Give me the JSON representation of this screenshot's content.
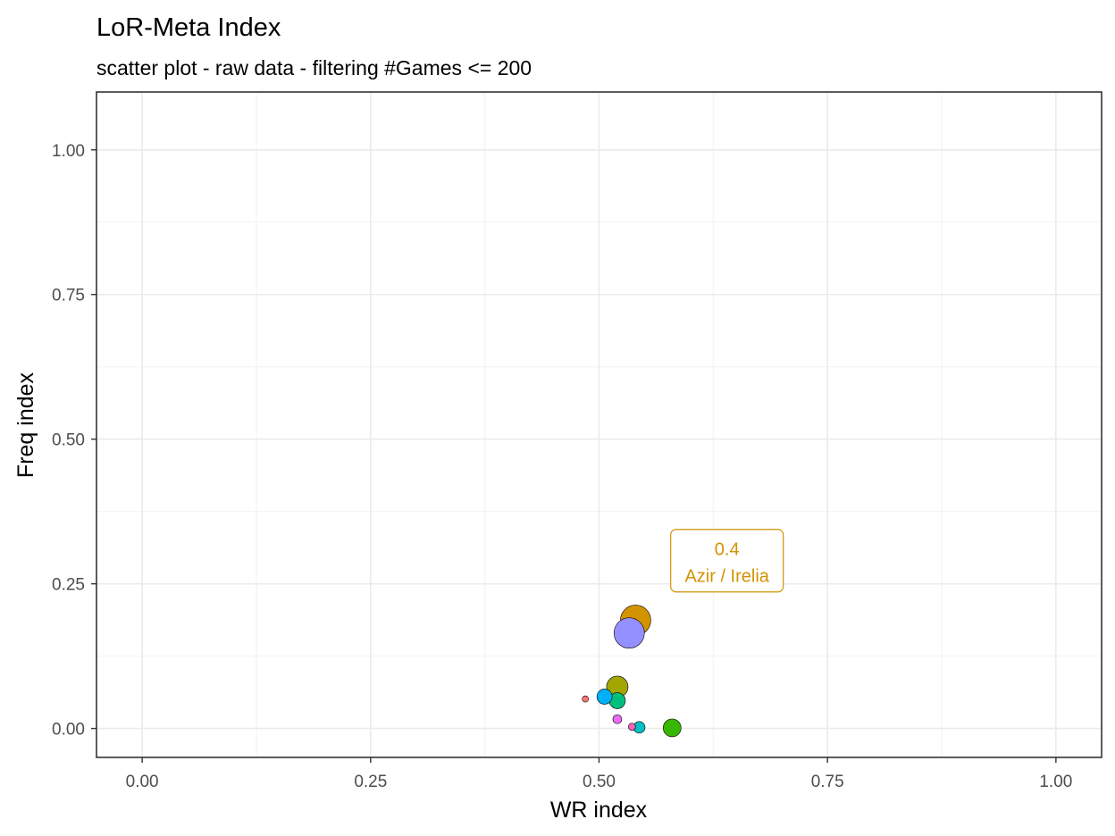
{
  "chart_data": {
    "type": "scatter",
    "title": "LoR-Meta Index",
    "subtitle": "scatter plot - raw data - filtering #Games <= 200",
    "xlabel": "WR index",
    "ylabel": "Freq index",
    "xlim": [
      -0.05,
      1.05
    ],
    "ylim": [
      -0.05,
      1.1
    ],
    "xticks": [
      {
        "value": 0,
        "label": "0.00"
      },
      {
        "value": 0.25,
        "label": "0.25"
      },
      {
        "value": 0.5,
        "label": "0.50"
      },
      {
        "value": 0.75,
        "label": "0.75"
      },
      {
        "value": 1,
        "label": "1.00"
      }
    ],
    "yticks": [
      {
        "value": 0,
        "label": "0.00"
      },
      {
        "value": 0.25,
        "label": "0.25"
      },
      {
        "value": 0.5,
        "label": "0.50"
      },
      {
        "value": 0.75,
        "label": "0.75"
      },
      {
        "value": 1,
        "label": "1.00"
      }
    ],
    "minor_x": [
      0.125,
      0.375,
      0.625,
      0.875
    ],
    "minor_y": [
      0.125,
      0.375,
      0.625,
      0.875
    ],
    "grid": true,
    "legend": "none",
    "points": [
      {
        "x": 0.54,
        "y": 0.187,
        "size": 17,
        "color": "#d39200"
      },
      {
        "x": 0.533,
        "y": 0.165,
        "size": 17,
        "color": "#9590ff"
      },
      {
        "x": 0.52,
        "y": 0.072,
        "size": 12,
        "color": "#a3a500"
      },
      {
        "x": 0.506,
        "y": 0.055,
        "size": 8.5,
        "color": "#00b0f6"
      },
      {
        "x": 0.52,
        "y": 0.048,
        "size": 9,
        "color": "#00bf7d"
      },
      {
        "x": 0.485,
        "y": 0.051,
        "size": 3.5,
        "color": "#f8766d"
      },
      {
        "x": 0.52,
        "y": 0.016,
        "size": 5,
        "color": "#e76bf3"
      },
      {
        "x": 0.536,
        "y": 0.003,
        "size": 4,
        "color": "#ff62bc"
      },
      {
        "x": 0.544,
        "y": 0.002,
        "size": 6.5,
        "color": "#00bfc4"
      },
      {
        "x": 0.58,
        "y": 0.001,
        "size": 10,
        "color": "#39b600"
      }
    ],
    "annotation": {
      "x": 0.64,
      "y": 0.29,
      "line1": "0.4",
      "line2": "Azir / Irelia",
      "color": "#d39200"
    }
  }
}
